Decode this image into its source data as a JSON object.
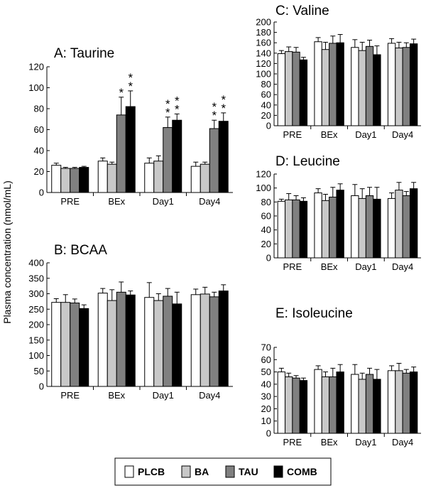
{
  "figure": {
    "ylabel": "Plasma concentration (nmol/mL)",
    "legend": [
      {
        "name": "PLCB",
        "color": "#ffffff"
      },
      {
        "name": "BA",
        "color": "#c8c8c8"
      },
      {
        "name": "TAU",
        "color": "#808080"
      },
      {
        "name": "COMB",
        "color": "#000000"
      }
    ]
  },
  "chart_data": [
    {
      "id": "A",
      "type": "bar",
      "title": "A: Taurine",
      "categories": [
        "PRE",
        "BEx",
        "Day1",
        "Day4"
      ],
      "ylim": [
        0,
        120
      ],
      "yticks": [
        0,
        20,
        40,
        60,
        80,
        100,
        120
      ],
      "series": [
        {
          "name": "PLCB",
          "values": [
            26,
            30,
            28,
            25
          ],
          "errors": [
            2,
            3,
            5,
            4
          ]
        },
        {
          "name": "BA",
          "values": [
            23,
            27,
            30,
            27
          ],
          "errors": [
            1,
            2,
            5,
            2
          ]
        },
        {
          "name": "TAU",
          "values": [
            23,
            74,
            62,
            61
          ],
          "errors": [
            1,
            17,
            10,
            8
          ]
        },
        {
          "name": "COMB",
          "values": [
            24,
            82,
            69,
            68
          ],
          "errors": [
            1,
            15,
            6,
            8
          ]
        }
      ],
      "annotations": [
        {
          "category": "BEx",
          "series": "TAU",
          "text": "*"
        },
        {
          "category": "BEx",
          "series": "COMB",
          "text": "**"
        },
        {
          "category": "Day1",
          "series": "TAU",
          "text": "**"
        },
        {
          "category": "Day1",
          "series": "COMB",
          "text": "**"
        },
        {
          "category": "Day4",
          "series": "TAU",
          "text": "**"
        },
        {
          "category": "Day4",
          "series": "COMB",
          "text": "**"
        }
      ]
    },
    {
      "id": "B",
      "type": "bar",
      "title": "B: BCAA",
      "categories": [
        "PRE",
        "BEx",
        "Day1",
        "Day4"
      ],
      "ylim": [
        0,
        400
      ],
      "yticks": [
        0,
        50,
        100,
        150,
        200,
        250,
        300,
        350,
        400
      ],
      "series": [
        {
          "name": "PLCB",
          "values": [
            272,
            302,
            288,
            297
          ],
          "errors": [
            12,
            15,
            48,
            18
          ]
        },
        {
          "name": "BA",
          "values": [
            272,
            278,
            278,
            299
          ],
          "errors": [
            25,
            35,
            22,
            22
          ]
        },
        {
          "name": "TAU",
          "values": [
            270,
            305,
            292,
            290
          ],
          "errors": [
            13,
            33,
            25,
            15
          ]
        },
        {
          "name": "COMB",
          "values": [
            252,
            296,
            267,
            309
          ],
          "errors": [
            12,
            13,
            38,
            20
          ]
        }
      ]
    },
    {
      "id": "C",
      "type": "bar",
      "title": "C: Valine",
      "categories": [
        "PRE",
        "BEx",
        "Day1",
        "Day4"
      ],
      "ylim": [
        0,
        200
      ],
      "yticks": [
        0,
        20,
        40,
        60,
        80,
        100,
        120,
        140,
        160,
        180,
        200
      ],
      "series": [
        {
          "name": "PLCB",
          "values": [
            139,
            162,
            151,
            159
          ],
          "errors": [
            6,
            8,
            15,
            9
          ]
        },
        {
          "name": "BA",
          "values": [
            143,
            147,
            145,
            150
          ],
          "errors": [
            9,
            14,
            16,
            11
          ]
        },
        {
          "name": "TAU",
          "values": [
            142,
            159,
            153,
            151
          ],
          "errors": [
            9,
            14,
            12,
            9
          ]
        },
        {
          "name": "COMB",
          "values": [
            127,
            160,
            137,
            158
          ],
          "errors": [
            5,
            16,
            17,
            9
          ]
        }
      ]
    },
    {
      "id": "D",
      "type": "bar",
      "title": "D: Leucine",
      "categories": [
        "PRE",
        "BEx",
        "Day1",
        "Day4"
      ],
      "ylim": [
        0,
        120
      ],
      "yticks": [
        0,
        20,
        40,
        60,
        80,
        100,
        120
      ],
      "series": [
        {
          "name": "PLCB",
          "values": [
            81,
            93,
            89,
            85
          ],
          "errors": [
            3,
            6,
            16,
            8
          ]
        },
        {
          "name": "BA",
          "values": [
            83,
            82,
            85,
            97
          ],
          "errors": [
            9,
            9,
            14,
            11
          ]
        },
        {
          "name": "TAU",
          "values": [
            83,
            87,
            89,
            89
          ],
          "errors": [
            6,
            14,
            12,
            6
          ]
        },
        {
          "name": "COMB",
          "values": [
            81,
            97,
            84,
            99
          ],
          "errors": [
            5,
            9,
            17,
            9
          ]
        }
      ]
    },
    {
      "id": "E",
      "type": "bar",
      "title": "E: Isoleucine",
      "categories": [
        "PRE",
        "BEx",
        "Day1",
        "Day4"
      ],
      "ylim": [
        0,
        70
      ],
      "yticks": [
        0,
        10,
        20,
        30,
        40,
        50,
        60,
        70
      ],
      "series": [
        {
          "name": "PLCB",
          "values": [
            50,
            52,
            48,
            51
          ],
          "errors": [
            3,
            3,
            8,
            4
          ]
        },
        {
          "name": "BA",
          "values": [
            46,
            46,
            44,
            51
          ],
          "errors": [
            3,
            4,
            5,
            6
          ]
        },
        {
          "name": "TAU",
          "values": [
            45,
            46,
            48,
            49
          ],
          "errors": [
            2,
            7,
            5,
            3
          ]
        },
        {
          "name": "COMB",
          "values": [
            43,
            50,
            44,
            50
          ],
          "errors": [
            2,
            6,
            8,
            4
          ]
        }
      ]
    }
  ]
}
